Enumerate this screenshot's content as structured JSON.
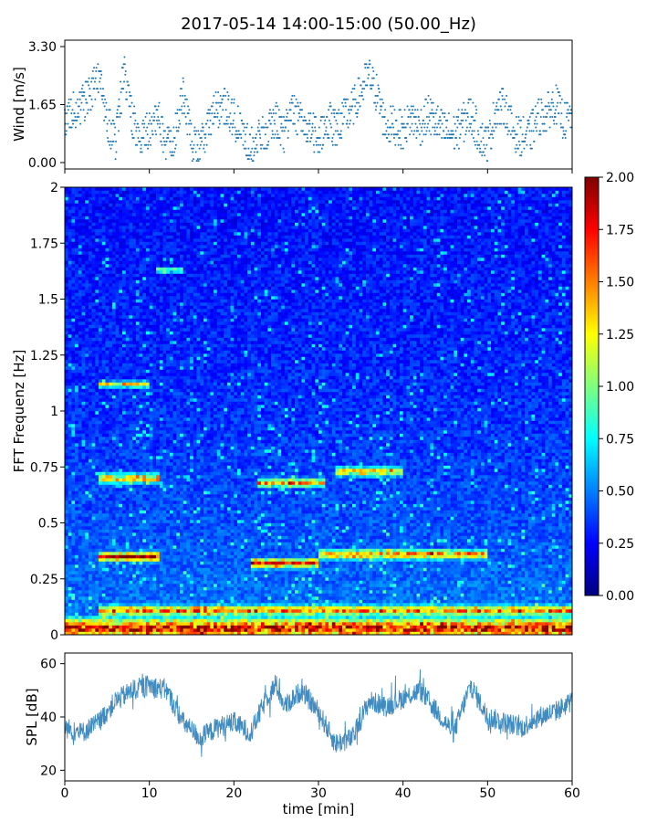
{
  "title": "2017-05-14 14:00-15:00 (50.00_Hz)",
  "colors": {
    "series": "#1f77b4",
    "colormap": [
      "#00007f",
      "#0000ff",
      "#007fff",
      "#00ffff",
      "#7fff7f",
      "#ffff00",
      "#ff7f00",
      "#ff0000",
      "#7f0000"
    ]
  },
  "chart_data": [
    {
      "id": "wind",
      "type": "scatter",
      "ylabel": "Wind [m/s]",
      "xlim": [
        0,
        60
      ],
      "ylim": [
        0,
        3.3
      ],
      "yticks": [
        0.0,
        1.65,
        3.3
      ],
      "ytick_labels": [
        "0.00",
        "1.65",
        "3.30"
      ],
      "description_points": "dense dot trace, one reading per few seconds",
      "envelope": [
        {
          "t": 0,
          "v": 1.3
        },
        {
          "t": 2,
          "v": 1.6
        },
        {
          "t": 3,
          "v": 2.0
        },
        {
          "t": 4,
          "v": 2.4
        },
        {
          "t": 5,
          "v": 1.2
        },
        {
          "t": 6,
          "v": 0.6
        },
        {
          "t": 7,
          "v": 2.6
        },
        {
          "t": 8,
          "v": 1.2
        },
        {
          "t": 9,
          "v": 0.7
        },
        {
          "t": 10,
          "v": 1.0
        },
        {
          "t": 11,
          "v": 1.3
        },
        {
          "t": 12,
          "v": 0.5
        },
        {
          "t": 13,
          "v": 0.8
        },
        {
          "t": 14,
          "v": 2.0
        },
        {
          "t": 15,
          "v": 0.6
        },
        {
          "t": 16,
          "v": 0.4
        },
        {
          "t": 17,
          "v": 1.1
        },
        {
          "t": 18,
          "v": 1.5
        },
        {
          "t": 19,
          "v": 1.6
        },
        {
          "t": 20,
          "v": 1.3
        },
        {
          "t": 21,
          "v": 0.8
        },
        {
          "t": 22,
          "v": 0.5
        },
        {
          "t": 23,
          "v": 0.7
        },
        {
          "t": 24,
          "v": 0.9
        },
        {
          "t": 25,
          "v": 1.2
        },
        {
          "t": 26,
          "v": 0.8
        },
        {
          "t": 27,
          "v": 1.5
        },
        {
          "t": 28,
          "v": 1.1
        },
        {
          "t": 29,
          "v": 1.0
        },
        {
          "t": 30,
          "v": 0.7
        },
        {
          "t": 31,
          "v": 1.2
        },
        {
          "t": 32,
          "v": 1.0
        },
        {
          "t": 33,
          "v": 1.3
        },
        {
          "t": 34,
          "v": 1.5
        },
        {
          "t": 35,
          "v": 2.0
        },
        {
          "t": 36,
          "v": 2.5
        },
        {
          "t": 37,
          "v": 1.9
        },
        {
          "t": 38,
          "v": 1.0
        },
        {
          "t": 39,
          "v": 1.1
        },
        {
          "t": 40,
          "v": 0.9
        },
        {
          "t": 41,
          "v": 1.3
        },
        {
          "t": 42,
          "v": 1.0
        },
        {
          "t": 43,
          "v": 1.4
        },
        {
          "t": 44,
          "v": 1.1
        },
        {
          "t": 45,
          "v": 0.9
        },
        {
          "t": 46,
          "v": 0.8
        },
        {
          "t": 47,
          "v": 1.1
        },
        {
          "t": 48,
          "v": 1.4
        },
        {
          "t": 49,
          "v": 0.8
        },
        {
          "t": 50,
          "v": 0.5
        },
        {
          "t": 51,
          "v": 1.5
        },
        {
          "t": 52,
          "v": 1.6
        },
        {
          "t": 53,
          "v": 0.9
        },
        {
          "t": 54,
          "v": 0.7
        },
        {
          "t": 55,
          "v": 0.8
        },
        {
          "t": 56,
          "v": 1.3
        },
        {
          "t": 57,
          "v": 1.4
        },
        {
          "t": 58,
          "v": 1.7
        },
        {
          "t": 59,
          "v": 1.2
        },
        {
          "t": 60,
          "v": 1.3
        }
      ]
    },
    {
      "id": "spectrogram",
      "type": "heatmap",
      "ylabel": "FFT Frequenz [Hz]",
      "xlim": [
        0,
        60
      ],
      "ylim": [
        0,
        2
      ],
      "yticks": [
        0,
        0.25,
        0.5,
        0.75,
        1,
        1.25,
        1.5,
        1.75,
        2
      ],
      "ytick_labels": [
        "0",
        "0.25",
        "0.5",
        "0.75",
        "1",
        "1.25",
        "1.5",
        "1.75",
        "2"
      ],
      "colorbar": {
        "range": [
          0,
          2
        ],
        "ticks": [
          0.0,
          0.25,
          0.5,
          0.75,
          1.0,
          1.25,
          1.5,
          1.75,
          2.0
        ],
        "tick_labels": [
          "0.00",
          "0.25",
          "0.50",
          "0.75",
          "1.00",
          "1.25",
          "1.50",
          "1.75",
          "2.00"
        ]
      },
      "bands": [
        {
          "f": 0.03,
          "width": 0.06,
          "level": 1.6,
          "t_from": 0,
          "t_to": 60
        },
        {
          "f": 0.11,
          "width": 0.03,
          "level": 1.3,
          "t_from": 4,
          "t_to": 60
        },
        {
          "f": 0.35,
          "width": 0.03,
          "level": 1.7,
          "t_from": 4,
          "t_to": 11
        },
        {
          "f": 0.32,
          "width": 0.03,
          "level": 1.5,
          "t_from": 22,
          "t_to": 30
        },
        {
          "f": 0.36,
          "width": 0.03,
          "level": 1.3,
          "t_from": 30,
          "t_to": 50
        },
        {
          "f": 0.7,
          "width": 0.03,
          "level": 1.3,
          "t_from": 4,
          "t_to": 11
        },
        {
          "f": 0.68,
          "width": 0.03,
          "level": 1.2,
          "t_from": 23,
          "t_to": 31
        },
        {
          "f": 0.73,
          "width": 0.03,
          "level": 1.1,
          "t_from": 32,
          "t_to": 40
        },
        {
          "f": 1.12,
          "width": 0.02,
          "level": 1.2,
          "t_from": 4,
          "t_to": 10
        },
        {
          "f": 1.63,
          "width": 0.015,
          "level": 1.0,
          "t_from": 11,
          "t_to": 14
        }
      ]
    },
    {
      "id": "spl",
      "type": "area",
      "ylabel": "SPL [dB]",
      "xlabel": "time [min]",
      "xlim": [
        0,
        60
      ],
      "ylim": [
        16,
        64
      ],
      "yticks": [
        20,
        40,
        60
      ],
      "ytick_labels": [
        "20",
        "40",
        "60"
      ],
      "xticks": [
        0,
        10,
        20,
        30,
        40,
        50,
        60
      ],
      "xtick_labels": [
        "0",
        "10",
        "20",
        "30",
        "40",
        "50",
        "60"
      ],
      "mean": [
        {
          "t": 0,
          "v": 36
        },
        {
          "t": 2,
          "v": 34
        },
        {
          "t": 4,
          "v": 38
        },
        {
          "t": 6,
          "v": 46
        },
        {
          "t": 8,
          "v": 50
        },
        {
          "t": 10,
          "v": 52
        },
        {
          "t": 12,
          "v": 50
        },
        {
          "t": 14,
          "v": 38
        },
        {
          "t": 16,
          "v": 32
        },
        {
          "t": 18,
          "v": 36
        },
        {
          "t": 20,
          "v": 38
        },
        {
          "t": 22,
          "v": 34
        },
        {
          "t": 24,
          "v": 48
        },
        {
          "t": 25,
          "v": 52
        },
        {
          "t": 26,
          "v": 44
        },
        {
          "t": 28,
          "v": 50
        },
        {
          "t": 30,
          "v": 42
        },
        {
          "t": 32,
          "v": 30
        },
        {
          "t": 34,
          "v": 32
        },
        {
          "t": 36,
          "v": 46
        },
        {
          "t": 38,
          "v": 44
        },
        {
          "t": 40,
          "v": 47
        },
        {
          "t": 42,
          "v": 50
        },
        {
          "t": 44,
          "v": 42
        },
        {
          "t": 46,
          "v": 34
        },
        {
          "t": 48,
          "v": 52
        },
        {
          "t": 50,
          "v": 40
        },
        {
          "t": 52,
          "v": 38
        },
        {
          "t": 54,
          "v": 36
        },
        {
          "t": 56,
          "v": 40
        },
        {
          "t": 58,
          "v": 42
        },
        {
          "t": 60,
          "v": 46
        }
      ],
      "spread": 4
    }
  ]
}
